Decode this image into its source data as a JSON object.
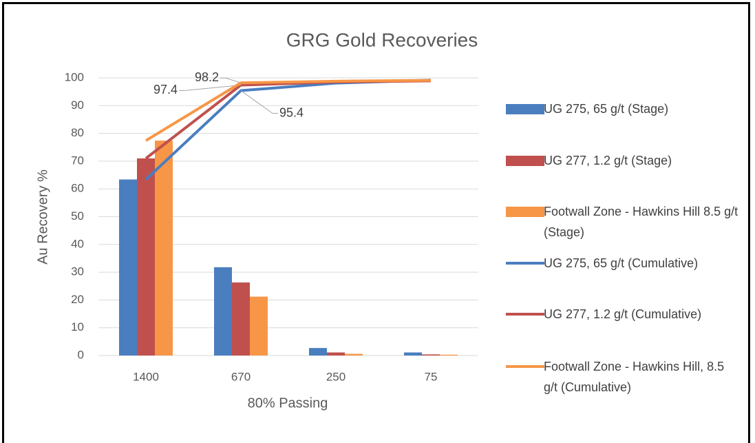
{
  "chart_data": {
    "type": "combo",
    "title": "GRG Gold Recoveries",
    "x_label": "80% Passing",
    "y_label": "Au Recovery %",
    "categories": [
      "1400",
      "670",
      "250",
      "75"
    ],
    "ylim": [
      0,
      100
    ],
    "yticks": [
      0,
      10,
      20,
      30,
      40,
      50,
      60,
      70,
      80,
      90,
      100
    ],
    "grid": true,
    "legend": "right",
    "series": [
      {
        "name": "UG 275, 65 g/t (Stage)",
        "type": "bar",
        "color": "#4a7ebf",
        "values": [
          63.4,
          31.8,
          2.7,
          1.1
        ]
      },
      {
        "name": "UG 277, 1.2 g/t (Stage)",
        "type": "bar",
        "color": "#c0504d",
        "values": [
          71,
          26.3,
          1.1,
          0.4
        ]
      },
      {
        "name": "Footwall Zone - Hawkins Hill 8.5 g/t (Stage)",
        "type": "bar",
        "color": "#f79646",
        "values": [
          77.4,
          21.2,
          0.6,
          0.3
        ]
      },
      {
        "name": "UG 275, 65 g/t (Cumulative)",
        "type": "line",
        "color": "#4a7ebf",
        "values": [
          63.4,
          95.4,
          98.1,
          99.2
        ],
        "data_labels": [
          1
        ]
      },
      {
        "name": "UG 277, 1.2 g/t (Cumulative)",
        "type": "line",
        "color": "#c0504d",
        "values": [
          71,
          97.4,
          98.5,
          98.9
        ],
        "data_labels": [
          1
        ]
      },
      {
        "name": "Footwall Zone - Hawkins Hill, 8.5 g/t (Cumulative)",
        "type": "line",
        "color": "#f79646",
        "values": [
          77.4,
          98.2,
          98.8,
          99.1
        ],
        "data_labels": [
          1
        ]
      }
    ]
  }
}
